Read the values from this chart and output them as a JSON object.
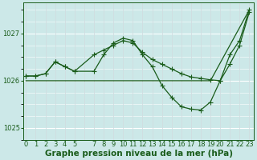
{
  "xlabel": "Graphe pression niveau de la mer (hPa)",
  "bg_color": "#cce8e8",
  "grid_color_h": "#b0d0d0",
  "grid_color_v": "#c0c8d0",
  "line_color": "#1a5c1a",
  "ylim": [
    1024.75,
    1027.65
  ],
  "xlim": [
    -0.3,
    23.5
  ],
  "yticks": [
    1025,
    1026,
    1027
  ],
  "xtick_labels": [
    "0",
    "1",
    "2",
    "3",
    "4",
    "5",
    "",
    "7",
    "8",
    "9",
    "10",
    "11",
    "12",
    "13",
    "14",
    "15",
    "16",
    "17",
    "18",
    "19",
    "20",
    "21",
    "22",
    "23"
  ],
  "series1_x": [
    0,
    1,
    2,
    3,
    4,
    5,
    7,
    8,
    9,
    10,
    11,
    12,
    13,
    14,
    15,
    16,
    17,
    18,
    19,
    20,
    21,
    22,
    23
  ],
  "series1_y": [
    1026.1,
    1026.1,
    1026.15,
    1026.4,
    1026.3,
    1026.2,
    1026.2,
    1026.55,
    1026.8,
    1026.9,
    1026.85,
    1026.55,
    1026.3,
    1025.9,
    1025.65,
    1025.45,
    1025.4,
    1025.38,
    1025.55,
    1026.0,
    1026.35,
    1026.75,
    1027.45
  ],
  "series2_x": [
    0,
    1,
    2,
    3,
    4,
    5,
    7,
    8,
    9,
    10,
    11,
    12,
    13,
    14,
    15,
    16,
    17,
    18,
    19,
    20,
    21,
    22,
    23
  ],
  "series2_y": [
    1026.1,
    1026.1,
    1026.15,
    1026.4,
    1026.3,
    1026.2,
    1026.55,
    1026.65,
    1026.75,
    1026.85,
    1026.8,
    1026.6,
    1026.45,
    1026.35,
    1026.25,
    1026.15,
    1026.08,
    1026.05,
    1026.02,
    1026.0,
    1026.55,
    1026.85,
    1027.5
  ],
  "series3_x": [
    0,
    19,
    23
  ],
  "series3_y": [
    1026.0,
    1026.0,
    1027.5
  ],
  "xlabel_fontsize": 7.5,
  "tick_fontsize": 6.0
}
